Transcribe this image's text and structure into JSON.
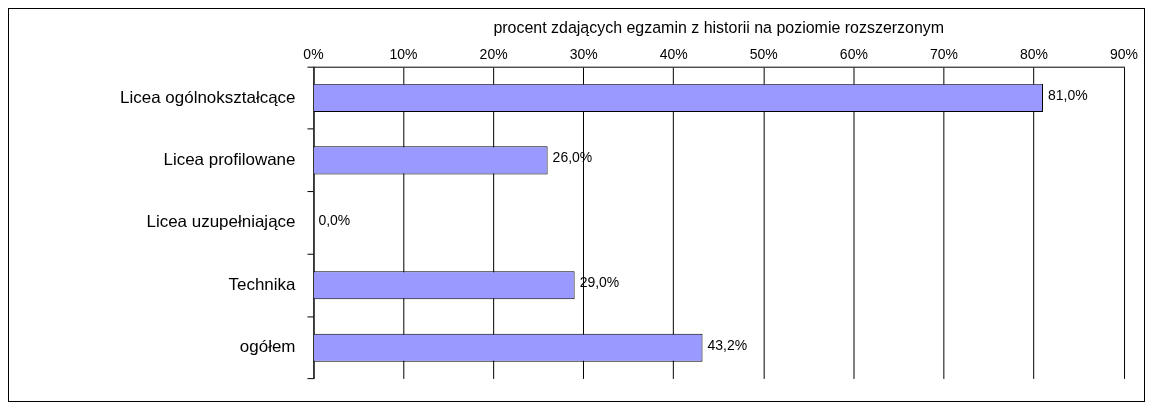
{
  "chart_data": {
    "type": "bar",
    "orientation": "horizontal",
    "xlabel": "procent zdających egzamin z historii na poziomie rozszerzonym",
    "categories": [
      "Licea ogólnokształcące",
      "Licea profilowane",
      "Licea uzupełniające",
      "Technika",
      "ogółem"
    ],
    "values": [
      81.0,
      26.0,
      0.0,
      29.0,
      43.2
    ],
    "value_labels": [
      "81,0%",
      "26,0%",
      "0,0%",
      "29,0%",
      "43,2%"
    ],
    "color": "#9999ff",
    "xlim": [
      0,
      90
    ],
    "xticks": [
      {
        "value": 0,
        "label": "0%"
      },
      {
        "value": 10,
        "label": "10%"
      },
      {
        "value": 20,
        "label": "20%"
      },
      {
        "value": 30,
        "label": "30%"
      },
      {
        "value": 40,
        "label": "40%"
      },
      {
        "value": 50,
        "label": "50%"
      },
      {
        "value": 60,
        "label": "60%"
      },
      {
        "value": 70,
        "label": "70%"
      },
      {
        "value": 80,
        "label": "80%"
      },
      {
        "value": 90,
        "label": "90%"
      }
    ],
    "grid": "x",
    "legend": false
  }
}
